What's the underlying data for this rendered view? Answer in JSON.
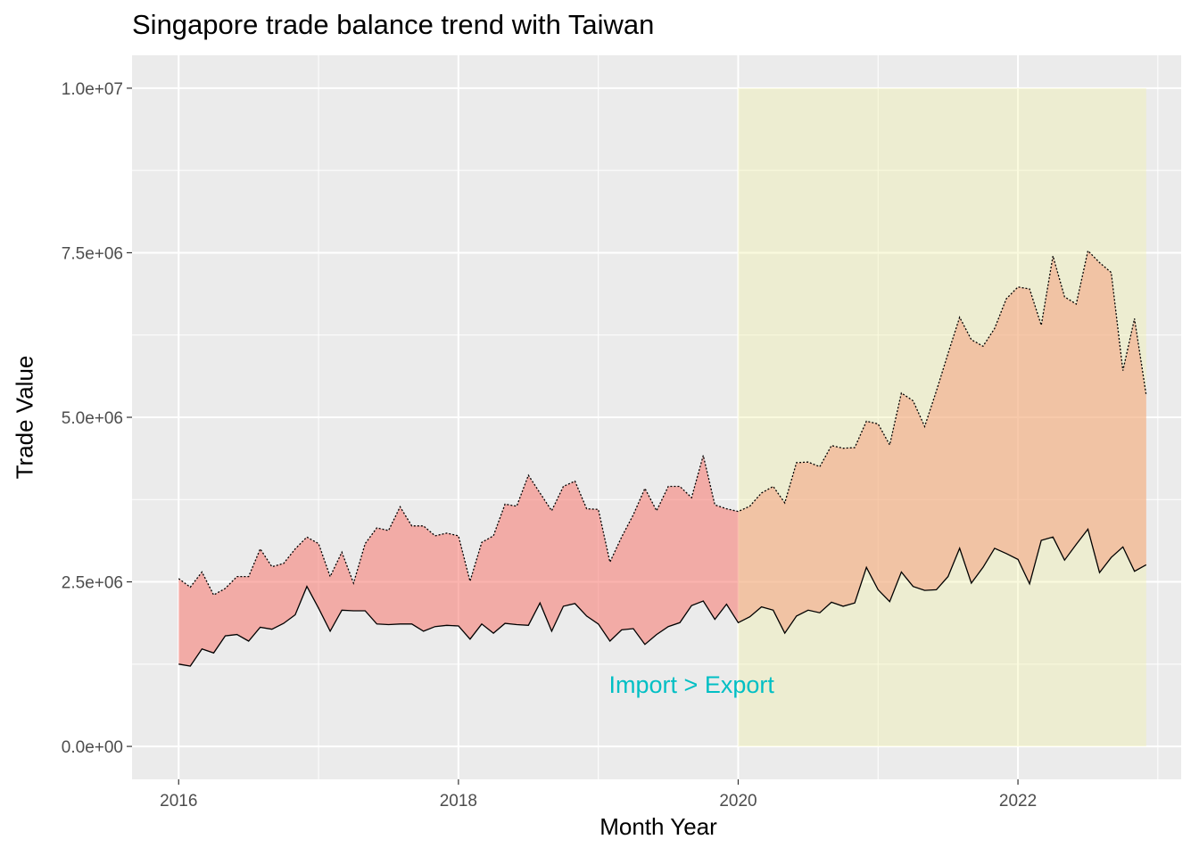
{
  "chart_data": {
    "type": "area",
    "title": "Singapore trade balance trend with Taiwan",
    "xlabel": "Month Year",
    "ylabel": "Trade Value",
    "x_tick_labels": [
      "2016",
      "2018",
      "2020",
      "2022"
    ],
    "y_tick_labels": [
      "0.0e+00",
      "2.5e+06",
      "5.0e+06",
      "7.5e+06",
      "1.0e+07"
    ],
    "y_ticks": [
      0,
      2500000,
      5000000,
      7500000,
      10000000
    ],
    "ylim": [
      -500000,
      10500000
    ],
    "xlim": [
      "2015-09",
      "2023-03"
    ],
    "grid": true,
    "fill_colors": {
      "area": "#f8766d",
      "highlight": "#f0f0a0",
      "annotation": "#00bfc4"
    },
    "highlight_period": {
      "start": "2020-01",
      "end": "2022-12",
      "ymin": 0,
      "ymax": 10000000
    },
    "annotation": {
      "text": "Import > Export",
      "x": "2019-09",
      "y": 950000
    },
    "months": [
      "2016-01",
      "2016-02",
      "2016-03",
      "2016-04",
      "2016-05",
      "2016-06",
      "2016-07",
      "2016-08",
      "2016-09",
      "2016-10",
      "2016-11",
      "2016-12",
      "2017-01",
      "2017-02",
      "2017-03",
      "2017-04",
      "2017-05",
      "2017-06",
      "2017-07",
      "2017-08",
      "2017-09",
      "2017-10",
      "2017-11",
      "2017-12",
      "2018-01",
      "2018-02",
      "2018-03",
      "2018-04",
      "2018-05",
      "2018-06",
      "2018-07",
      "2018-08",
      "2018-09",
      "2018-10",
      "2018-11",
      "2018-12",
      "2019-01",
      "2019-02",
      "2019-03",
      "2019-04",
      "2019-05",
      "2019-06",
      "2019-07",
      "2019-08",
      "2019-09",
      "2019-10",
      "2019-11",
      "2019-12",
      "2020-01",
      "2020-02",
      "2020-03",
      "2020-04",
      "2020-05",
      "2020-06",
      "2020-07",
      "2020-08",
      "2020-09",
      "2020-10",
      "2020-11",
      "2020-12",
      "2021-01",
      "2021-02",
      "2021-03",
      "2021-04",
      "2021-05",
      "2021-06",
      "2021-07",
      "2021-08",
      "2021-09",
      "2021-10",
      "2021-11",
      "2021-12",
      "2022-01",
      "2022-02",
      "2022-03",
      "2022-04",
      "2022-05",
      "2022-06",
      "2022-07",
      "2022-08",
      "2022-09",
      "2022-10",
      "2022-11",
      "2022-12"
    ],
    "series": [
      {
        "line": "dotted",
        "values": [
          2550000,
          2420000,
          2650000,
          2300000,
          2400000,
          2580000,
          2580000,
          3000000,
          2730000,
          2780000,
          3000000,
          3180000,
          3080000,
          2580000,
          2950000,
          2480000,
          3080000,
          3320000,
          3280000,
          3640000,
          3350000,
          3350000,
          3200000,
          3240000,
          3200000,
          2510000,
          3100000,
          3200000,
          3680000,
          3650000,
          4120000,
          3850000,
          3580000,
          3950000,
          4030000,
          3610000,
          3600000,
          2800000,
          3180000,
          3520000,
          3920000,
          3580000,
          3950000,
          3950000,
          3780000,
          4420000,
          3670000,
          3610000,
          3570000,
          3650000,
          3850000,
          3950000,
          3700000,
          4310000,
          4320000,
          4250000,
          4570000,
          4530000,
          4540000,
          4940000,
          4900000,
          4580000,
          5370000,
          5250000,
          4860000,
          5400000,
          5970000,
          6520000,
          6180000,
          6080000,
          6350000,
          6800000,
          6980000,
          6950000,
          6400000,
          7450000,
          6830000,
          6720000,
          7530000,
          7350000,
          7200000,
          5710000,
          6500000,
          5340000
        ]
      },
      {
        "line": "solid",
        "values": [
          1250000,
          1220000,
          1480000,
          1420000,
          1680000,
          1700000,
          1600000,
          1810000,
          1780000,
          1870000,
          2000000,
          2430000,
          2100000,
          1750000,
          2070000,
          2060000,
          2060000,
          1860000,
          1850000,
          1860000,
          1860000,
          1750000,
          1820000,
          1840000,
          1830000,
          1630000,
          1860000,
          1720000,
          1870000,
          1850000,
          1840000,
          2180000,
          1750000,
          2130000,
          2170000,
          1980000,
          1860000,
          1600000,
          1770000,
          1790000,
          1550000,
          1700000,
          1820000,
          1880000,
          2140000,
          2210000,
          1930000,
          2160000,
          1880000,
          1970000,
          2120000,
          2070000,
          1720000,
          1980000,
          2070000,
          2030000,
          2190000,
          2130000,
          2180000,
          2720000,
          2380000,
          2200000,
          2650000,
          2430000,
          2370000,
          2380000,
          2580000,
          3010000,
          2480000,
          2720000,
          3010000,
          2930000,
          2840000,
          2470000,
          3130000,
          3180000,
          2830000,
          3070000,
          3300000,
          2640000,
          2870000,
          3030000,
          2660000,
          2760000
        ]
      }
    ]
  }
}
